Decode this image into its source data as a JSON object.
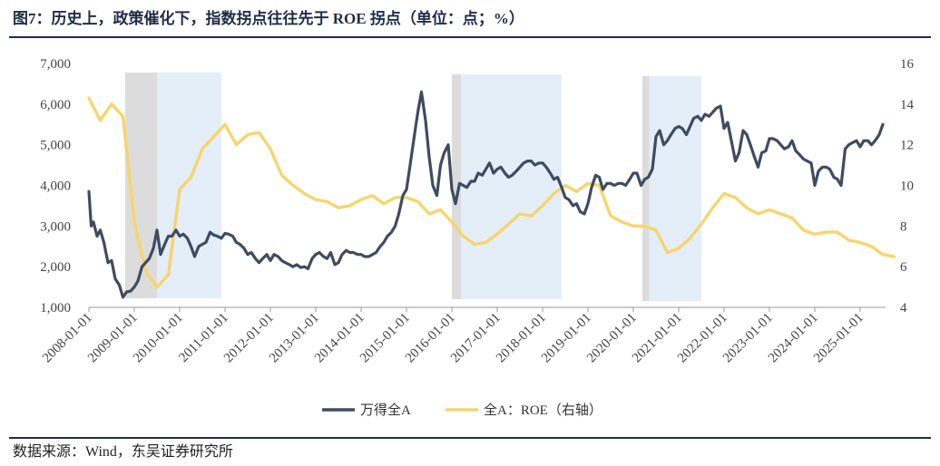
{
  "header": {
    "title": "图7：历史上，政策催化下，指数拐点往往先于 ROE 拐点（单位：点；%）"
  },
  "footer": {
    "source": "数据来源：Wind，东吴证券研究所"
  },
  "colors": {
    "index": "#3f4b61",
    "roe": "#f7d56c",
    "shade_gray": "#dcdcdc",
    "shade_blue": "#e4eef8"
  },
  "chart_data": {
    "type": "line",
    "title": "历史上，政策催化下，指数拐点往往先于 ROE 拐点",
    "ylim_left": [
      1000,
      7000
    ],
    "ylim_right": [
      4,
      16
    ],
    "y_ticks_left": [
      "1,000",
      "2,000",
      "3,000",
      "4,000",
      "5,000",
      "6,000",
      "7,000"
    ],
    "y_ticks_right": [
      "4",
      "6",
      "8",
      "10",
      "12",
      "14",
      "16"
    ],
    "x_ticks": [
      "2008-01-01",
      "2009-01-01",
      "2010-01-01",
      "2011-01-01",
      "2012-01-01",
      "2013-01-01",
      "2014-01-01",
      "2015-01-01",
      "2016-01-01",
      "2017-01-01",
      "2018-01-01",
      "2019-01-01",
      "2020-01-01",
      "2021-01-01",
      "2022-01-01",
      "2023-01-01",
      "2024-01-01",
      "2025-01-01"
    ],
    "shaded_periods": [
      {
        "kind": "gray",
        "start": 2008.8,
        "end": 2009.5
      },
      {
        "kind": "blue",
        "start": 2009.5,
        "end": 2010.92
      },
      {
        "kind": "gray",
        "start": 2016.0,
        "end": 2016.2
      },
      {
        "kind": "blue",
        "start": 2016.2,
        "end": 2018.42
      },
      {
        "kind": "gray",
        "start": 2020.2,
        "end": 2020.35
      },
      {
        "kind": "blue",
        "start": 2020.35,
        "end": 2021.5
      }
    ],
    "series": [
      {
        "name": "万得全A",
        "axis": "left",
        "points": [
          [
            2008.0,
            3850
          ],
          [
            2008.05,
            3000
          ],
          [
            2008.1,
            3100
          ],
          [
            2008.18,
            2750
          ],
          [
            2008.25,
            2900
          ],
          [
            2008.33,
            2600
          ],
          [
            2008.42,
            2100
          ],
          [
            2008.5,
            2150
          ],
          [
            2008.58,
            1700
          ],
          [
            2008.67,
            1550
          ],
          [
            2008.75,
            1250
          ],
          [
            2008.83,
            1380
          ],
          [
            2008.92,
            1400
          ],
          [
            2009.0,
            1500
          ],
          [
            2009.08,
            1650
          ],
          [
            2009.17,
            2000
          ],
          [
            2009.25,
            2100
          ],
          [
            2009.33,
            2200
          ],
          [
            2009.42,
            2450
          ],
          [
            2009.5,
            2900
          ],
          [
            2009.58,
            2300
          ],
          [
            2009.67,
            2550
          ],
          [
            2009.75,
            2750
          ],
          [
            2009.83,
            2750
          ],
          [
            2009.92,
            2900
          ],
          [
            2010.0,
            2750
          ],
          [
            2010.08,
            2800
          ],
          [
            2010.17,
            2700
          ],
          [
            2010.25,
            2500
          ],
          [
            2010.33,
            2250
          ],
          [
            2010.42,
            2500
          ],
          [
            2010.5,
            2550
          ],
          [
            2010.58,
            2600
          ],
          [
            2010.67,
            2850
          ],
          [
            2010.75,
            2780
          ],
          [
            2010.83,
            2750
          ],
          [
            2010.92,
            2700
          ],
          [
            2011.0,
            2820
          ],
          [
            2011.08,
            2800
          ],
          [
            2011.17,
            2750
          ],
          [
            2011.25,
            2600
          ],
          [
            2011.33,
            2550
          ],
          [
            2011.42,
            2450
          ],
          [
            2011.5,
            2300
          ],
          [
            2011.58,
            2350
          ],
          [
            2011.67,
            2200
          ],
          [
            2011.75,
            2100
          ],
          [
            2011.83,
            2200
          ],
          [
            2011.92,
            2300
          ],
          [
            2012.0,
            2150
          ],
          [
            2012.08,
            2300
          ],
          [
            2012.17,
            2250
          ],
          [
            2012.25,
            2150
          ],
          [
            2012.33,
            2100
          ],
          [
            2012.42,
            2050
          ],
          [
            2012.5,
            2000
          ],
          [
            2012.58,
            2050
          ],
          [
            2012.67,
            1980
          ],
          [
            2012.75,
            2000
          ],
          [
            2012.83,
            1950
          ],
          [
            2012.92,
            2200
          ],
          [
            2013.0,
            2300
          ],
          [
            2013.08,
            2350
          ],
          [
            2013.17,
            2250
          ],
          [
            2013.25,
            2200
          ],
          [
            2013.33,
            2350
          ],
          [
            2013.42,
            2050
          ],
          [
            2013.5,
            2100
          ],
          [
            2013.58,
            2300
          ],
          [
            2013.67,
            2400
          ],
          [
            2013.75,
            2350
          ],
          [
            2013.83,
            2350
          ],
          [
            2013.92,
            2300
          ],
          [
            2014.0,
            2300
          ],
          [
            2014.08,
            2250
          ],
          [
            2014.17,
            2250
          ],
          [
            2014.25,
            2300
          ],
          [
            2014.33,
            2350
          ],
          [
            2014.42,
            2500
          ],
          [
            2014.5,
            2600
          ],
          [
            2014.58,
            2750
          ],
          [
            2014.67,
            2850
          ],
          [
            2014.75,
            3000
          ],
          [
            2014.83,
            3300
          ],
          [
            2014.92,
            3750
          ],
          [
            2015.0,
            3900
          ],
          [
            2015.08,
            4500
          ],
          [
            2015.17,
            5200
          ],
          [
            2015.25,
            5800
          ],
          [
            2015.33,
            6300
          ],
          [
            2015.42,
            5600
          ],
          [
            2015.5,
            4700
          ],
          [
            2015.58,
            4000
          ],
          [
            2015.67,
            3750
          ],
          [
            2015.75,
            4500
          ],
          [
            2015.83,
            4800
          ],
          [
            2015.92,
            5000
          ],
          [
            2016.0,
            3900
          ],
          [
            2016.08,
            3550
          ],
          [
            2016.17,
            4050
          ],
          [
            2016.25,
            4000
          ],
          [
            2016.33,
            3950
          ],
          [
            2016.42,
            4100
          ],
          [
            2016.5,
            4100
          ],
          [
            2016.58,
            4300
          ],
          [
            2016.67,
            4250
          ],
          [
            2016.75,
            4400
          ],
          [
            2016.83,
            4550
          ],
          [
            2016.92,
            4300
          ],
          [
            2017.0,
            4400
          ],
          [
            2017.08,
            4450
          ],
          [
            2017.17,
            4300
          ],
          [
            2017.25,
            4200
          ],
          [
            2017.33,
            4250
          ],
          [
            2017.42,
            4350
          ],
          [
            2017.5,
            4450
          ],
          [
            2017.58,
            4550
          ],
          [
            2017.67,
            4600
          ],
          [
            2017.75,
            4600
          ],
          [
            2017.83,
            4500
          ],
          [
            2017.92,
            4550
          ],
          [
            2018.0,
            4550
          ],
          [
            2018.08,
            4450
          ],
          [
            2018.17,
            4300
          ],
          [
            2018.25,
            4150
          ],
          [
            2018.33,
            4200
          ],
          [
            2018.42,
            3950
          ],
          [
            2018.5,
            3700
          ],
          [
            2018.58,
            3650
          ],
          [
            2018.67,
            3500
          ],
          [
            2018.75,
            3550
          ],
          [
            2018.83,
            3350
          ],
          [
            2018.92,
            3300
          ],
          [
            2019.0,
            3550
          ],
          [
            2019.08,
            3950
          ],
          [
            2019.17,
            4250
          ],
          [
            2019.25,
            4200
          ],
          [
            2019.33,
            3900
          ],
          [
            2019.42,
            4050
          ],
          [
            2019.5,
            4050
          ],
          [
            2019.58,
            4000
          ],
          [
            2019.67,
            4050
          ],
          [
            2019.75,
            4050
          ],
          [
            2019.83,
            4000
          ],
          [
            2019.92,
            4150
          ],
          [
            2020.0,
            4300
          ],
          [
            2020.08,
            4300
          ],
          [
            2020.17,
            4000
          ],
          [
            2020.25,
            4150
          ],
          [
            2020.33,
            4200
          ],
          [
            2020.42,
            4400
          ],
          [
            2020.5,
            5200
          ],
          [
            2020.58,
            5350
          ],
          [
            2020.67,
            5000
          ],
          [
            2020.75,
            5100
          ],
          [
            2020.83,
            5250
          ],
          [
            2020.92,
            5400
          ],
          [
            2021.0,
            5450
          ],
          [
            2021.08,
            5400
          ],
          [
            2021.17,
            5250
          ],
          [
            2021.25,
            5450
          ],
          [
            2021.33,
            5650
          ],
          [
            2021.42,
            5700
          ],
          [
            2021.5,
            5600
          ],
          [
            2021.58,
            5750
          ],
          [
            2021.67,
            5700
          ],
          [
            2021.75,
            5800
          ],
          [
            2021.83,
            5900
          ],
          [
            2021.92,
            5950
          ],
          [
            2022.0,
            5400
          ],
          [
            2022.08,
            5550
          ],
          [
            2022.17,
            5050
          ],
          [
            2022.25,
            4600
          ],
          [
            2022.33,
            4800
          ],
          [
            2022.42,
            5350
          ],
          [
            2022.5,
            5250
          ],
          [
            2022.58,
            5000
          ],
          [
            2022.67,
            4700
          ],
          [
            2022.75,
            4450
          ],
          [
            2022.83,
            4800
          ],
          [
            2022.92,
            4850
          ],
          [
            2023.0,
            5150
          ],
          [
            2023.08,
            5150
          ],
          [
            2023.17,
            5100
          ],
          [
            2023.25,
            5000
          ],
          [
            2023.33,
            4900
          ],
          [
            2023.42,
            4950
          ],
          [
            2023.5,
            5100
          ],
          [
            2023.58,
            4850
          ],
          [
            2023.67,
            4750
          ],
          [
            2023.75,
            4650
          ],
          [
            2023.83,
            4600
          ],
          [
            2023.92,
            4550
          ],
          [
            2024.0,
            4000
          ],
          [
            2024.08,
            4350
          ],
          [
            2024.17,
            4450
          ],
          [
            2024.25,
            4450
          ],
          [
            2024.33,
            4400
          ],
          [
            2024.42,
            4200
          ],
          [
            2024.5,
            4150
          ],
          [
            2024.58,
            4000
          ],
          [
            2024.67,
            4900
          ],
          [
            2024.75,
            5000
          ],
          [
            2024.83,
            5050
          ],
          [
            2024.92,
            5100
          ],
          [
            2025.0,
            4950
          ],
          [
            2025.08,
            5100
          ],
          [
            2025.17,
            5100
          ],
          [
            2025.25,
            5000
          ],
          [
            2025.33,
            5100
          ],
          [
            2025.42,
            5250
          ],
          [
            2025.5,
            5500
          ]
        ]
      },
      {
        "name": "全A：ROE（右轴）",
        "axis": "right",
        "points": [
          [
            2008.0,
            14.3
          ],
          [
            2008.25,
            13.2
          ],
          [
            2008.5,
            14.0
          ],
          [
            2008.75,
            13.4
          ],
          [
            2009.0,
            8.2
          ],
          [
            2009.25,
            5.8
          ],
          [
            2009.5,
            5.0
          ],
          [
            2009.75,
            5.6
          ],
          [
            2010.0,
            9.8
          ],
          [
            2010.25,
            10.4
          ],
          [
            2010.5,
            11.8
          ],
          [
            2010.75,
            12.4
          ],
          [
            2011.0,
            13.0
          ],
          [
            2011.25,
            12.0
          ],
          [
            2011.5,
            12.5
          ],
          [
            2011.75,
            12.6
          ],
          [
            2012.0,
            11.8
          ],
          [
            2012.25,
            10.5
          ],
          [
            2012.5,
            10.0
          ],
          [
            2012.75,
            9.6
          ],
          [
            2013.0,
            9.3
          ],
          [
            2013.25,
            9.2
          ],
          [
            2013.5,
            8.9
          ],
          [
            2013.75,
            9.0
          ],
          [
            2014.0,
            9.3
          ],
          [
            2014.25,
            9.5
          ],
          [
            2014.5,
            9.1
          ],
          [
            2014.75,
            9.4
          ],
          [
            2015.0,
            9.4
          ],
          [
            2015.25,
            9.2
          ],
          [
            2015.5,
            8.6
          ],
          [
            2015.75,
            8.8
          ],
          [
            2016.0,
            8.2
          ],
          [
            2016.25,
            7.5
          ],
          [
            2016.5,
            7.1
          ],
          [
            2016.75,
            7.2
          ],
          [
            2017.0,
            7.6
          ],
          [
            2017.25,
            8.1
          ],
          [
            2017.5,
            8.6
          ],
          [
            2017.75,
            8.5
          ],
          [
            2018.0,
            9.0
          ],
          [
            2018.25,
            9.6
          ],
          [
            2018.5,
            10.0
          ],
          [
            2018.75,
            9.7
          ],
          [
            2019.0,
            10.1
          ],
          [
            2019.25,
            10.0
          ],
          [
            2019.5,
            8.5
          ],
          [
            2019.75,
            8.2
          ],
          [
            2020.0,
            8.0
          ],
          [
            2020.25,
            8.0
          ],
          [
            2020.5,
            7.8
          ],
          [
            2020.75,
            6.7
          ],
          [
            2021.0,
            6.9
          ],
          [
            2021.25,
            7.4
          ],
          [
            2021.5,
            8.1
          ],
          [
            2021.75,
            8.9
          ],
          [
            2022.0,
            9.6
          ],
          [
            2022.25,
            9.4
          ],
          [
            2022.5,
            8.9
          ],
          [
            2022.75,
            8.6
          ],
          [
            2023.0,
            8.8
          ],
          [
            2023.25,
            8.6
          ],
          [
            2023.5,
            8.4
          ],
          [
            2023.75,
            7.8
          ],
          [
            2024.0,
            7.6
          ],
          [
            2024.25,
            7.7
          ],
          [
            2024.5,
            7.7
          ],
          [
            2024.75,
            7.3
          ],
          [
            2025.0,
            7.2
          ],
          [
            2025.25,
            7.0
          ],
          [
            2025.5,
            6.6
          ],
          [
            2025.75,
            6.5
          ]
        ]
      }
    ],
    "legend": {
      "placement": "bottom-center",
      "entries": [
        "万得全A",
        "全A：ROE（右轴）"
      ]
    }
  }
}
